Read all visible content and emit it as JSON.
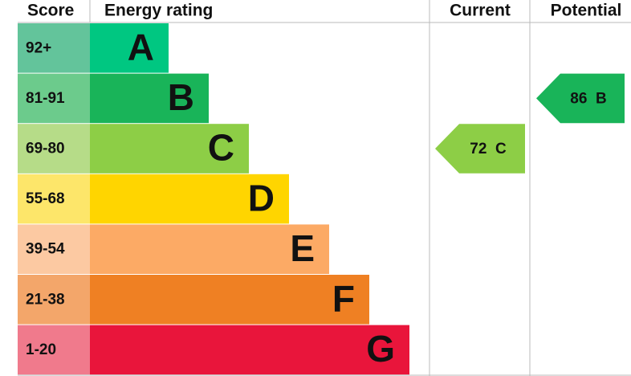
{
  "header": {
    "score": "Score",
    "rating": "Energy rating",
    "current": "Current",
    "potential": "Potential"
  },
  "bands": [
    {
      "score": "92+",
      "letter": "A",
      "color": "#00c781",
      "score_color": "#63c49b"
    },
    {
      "score": "81-91",
      "letter": "B",
      "color": "#19b459",
      "score_color": "#6ccb8c"
    },
    {
      "score": "69-80",
      "letter": "C",
      "color": "#8dce46",
      "score_color": "#b6dc88"
    },
    {
      "score": "55-68",
      "letter": "D",
      "color": "#ffd500",
      "score_color": "#fde66a"
    },
    {
      "score": "39-54",
      "letter": "E",
      "color": "#fcaa65",
      "score_color": "#fcc9a2"
    },
    {
      "score": "21-38",
      "letter": "F",
      "color": "#ef8023",
      "score_color": "#f3a66a"
    },
    {
      "score": "1-20",
      "letter": "G",
      "color": "#e9153b",
      "score_color": "#f07a8c"
    }
  ],
  "current": {
    "value": 72,
    "letter": "C",
    "color": "#8dce46"
  },
  "potential": {
    "value": 86,
    "letter": "B",
    "color": "#19b459"
  }
}
